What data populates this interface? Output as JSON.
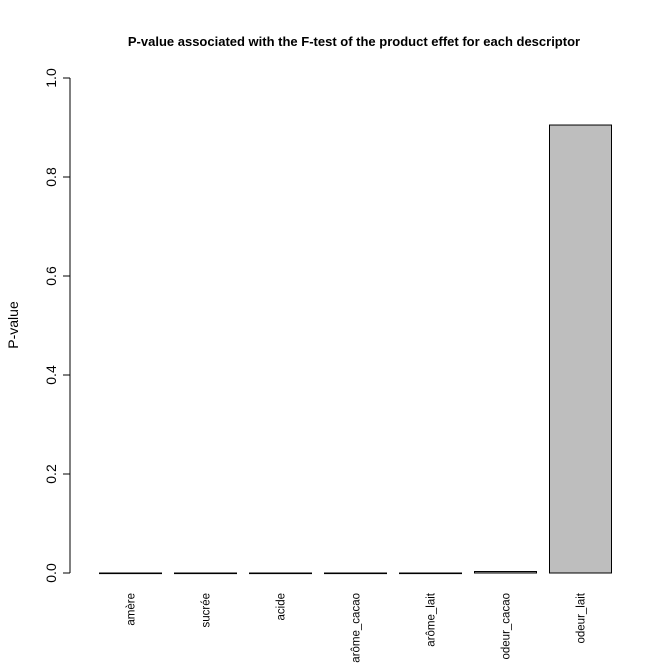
{
  "chart_data": {
    "type": "bar",
    "title": "P-value associated with the F-test of the product effet for each descriptor",
    "xlabel": "",
    "ylabel": "P-value",
    "categories": [
      "amère",
      "sucrée",
      "acide",
      "arôme_cacao",
      "arôme_lait",
      "odeur_cacao",
      "odeur_lait"
    ],
    "values": [
      0.0,
      0.0,
      0.0,
      0.0,
      0.0,
      0.003,
      0.905
    ],
    "ylim": [
      0,
      1
    ],
    "yticks": [
      "0.0",
      "0.2",
      "0.4",
      "0.6",
      "0.8",
      "1.0"
    ],
    "grid": false,
    "legend": "none",
    "bar_color": "#bebebe",
    "bar_border_color": "#000000"
  }
}
